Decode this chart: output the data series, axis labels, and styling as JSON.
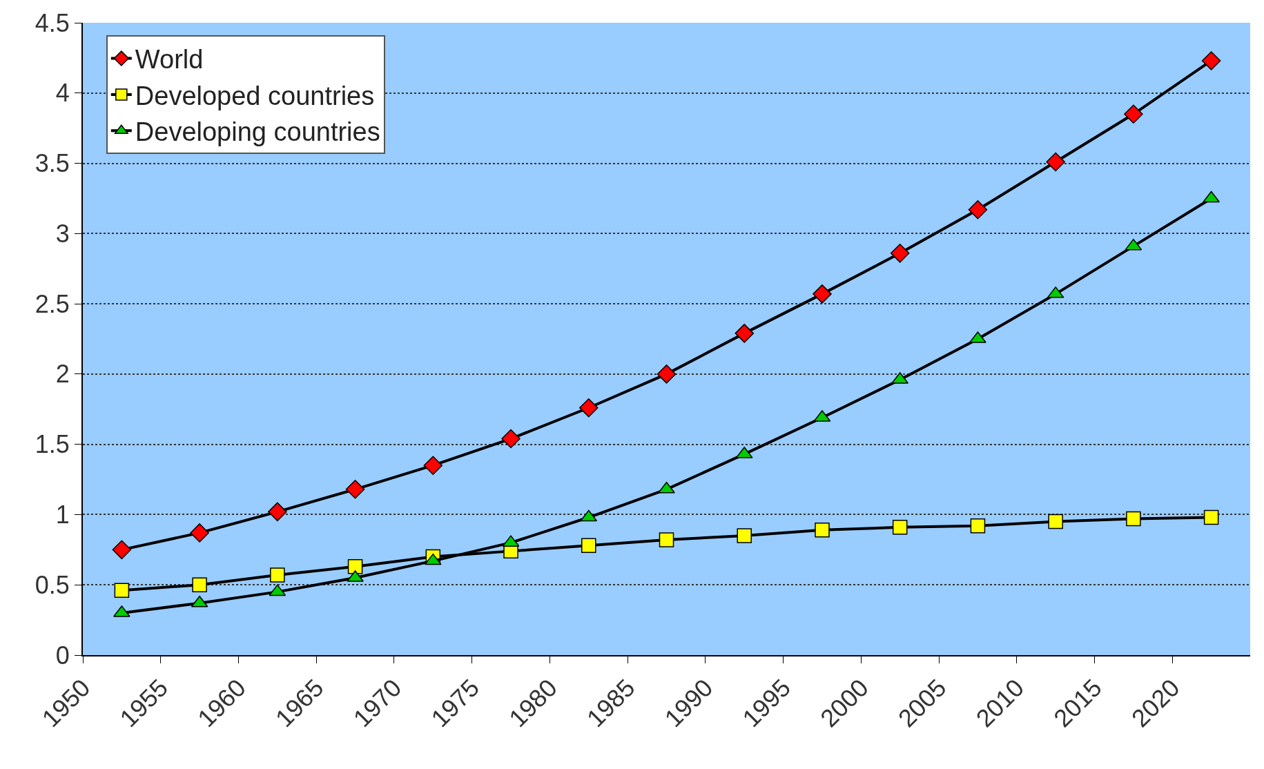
{
  "chart_data": {
    "type": "line",
    "x": [
      1952.5,
      1957.5,
      1962.5,
      1967.5,
      1972.5,
      1977.5,
      1982.5,
      1987.5,
      1992.5,
      1997.5,
      2002.5,
      2007.5,
      2012.5,
      2017.5,
      2022.5
    ],
    "series": [
      {
        "name": "World",
        "color": "#ff0000",
        "marker": "diamond",
        "values": [
          0.75,
          0.87,
          1.02,
          1.18,
          1.35,
          1.54,
          1.76,
          2.0,
          2.29,
          2.57,
          2.86,
          3.17,
          3.51,
          3.85,
          4.23
        ]
      },
      {
        "name": "Developed countries",
        "color": "#ffff00",
        "marker": "square",
        "values": [
          0.46,
          0.5,
          0.57,
          0.63,
          0.7,
          0.74,
          0.78,
          0.82,
          0.85,
          0.89,
          0.91,
          0.92,
          0.95,
          0.97,
          0.98
        ]
      },
      {
        "name": "Developing countries",
        "color": "#00cc00",
        "marker": "triangle",
        "values": [
          0.3,
          0.37,
          0.45,
          0.55,
          0.67,
          0.8,
          0.98,
          1.18,
          1.43,
          1.69,
          1.96,
          2.25,
          2.57,
          2.91,
          3.25
        ]
      }
    ],
    "xlim": [
      1950,
      2025
    ],
    "xticks": [
      1950,
      1955,
      1960,
      1965,
      1970,
      1975,
      1980,
      1985,
      1990,
      1995,
      2000,
      2005,
      2010,
      2015,
      2020
    ],
    "ylim": [
      0,
      4.5
    ],
    "yticks": [
      0,
      0.5,
      1,
      1.5,
      2,
      2.5,
      3,
      3.5,
      4,
      4.5
    ],
    "grid": "y",
    "legend": "top left",
    "line_style": "solid"
  }
}
